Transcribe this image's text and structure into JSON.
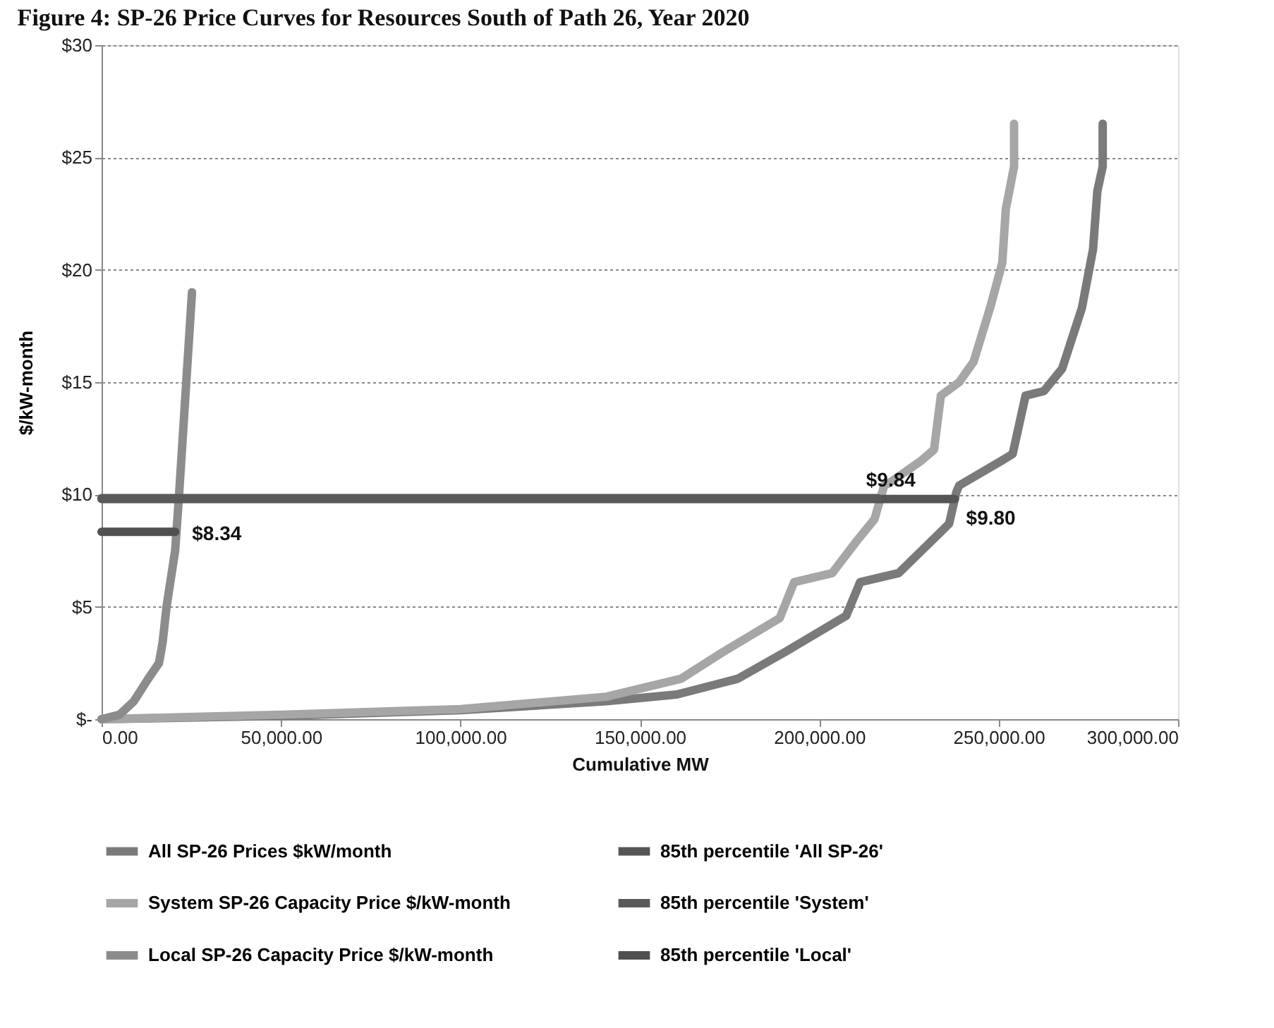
{
  "chart_data": {
    "type": "line",
    "title": "Figure 4: SP-26 Price Curves for Resources South of Path 26, Year 2020",
    "xlabel": "Cumulative MW",
    "ylabel": "$/kW-month",
    "xlim": [
      0,
      300000
    ],
    "ylim": [
      0,
      30
    ],
    "xticks": [
      {
        "value": 0,
        "label": "0.00"
      },
      {
        "value": 50000,
        "label": "50,000.00"
      },
      {
        "value": 100000,
        "label": "100,000.00"
      },
      {
        "value": 150000,
        "label": "150,000.00"
      },
      {
        "value": 200000,
        "label": "200,000.00"
      },
      {
        "value": 250000,
        "label": "250,000.00"
      },
      {
        "value": 300000,
        "label": "300,000.00"
      }
    ],
    "yticks": [
      {
        "value": 0,
        "label": "$-"
      },
      {
        "value": 5,
        "label": "$5"
      },
      {
        "value": 10,
        "label": "$10"
      },
      {
        "value": 15,
        "label": "$15"
      },
      {
        "value": 20,
        "label": "$20"
      },
      {
        "value": 25,
        "label": "$25"
      },
      {
        "value": 30,
        "label": "$30"
      }
    ],
    "grid": "y",
    "legend": "bottom",
    "line_style": "solid",
    "series": [
      {
        "name": "All SP-26 Prices $kW/month",
        "color": "#7a7a7a",
        "x": [
          0,
          50000,
          100000,
          140700,
          160300,
          177300,
          190600,
          207500,
          211400,
          222100,
          231100,
          236200,
          238200,
          239000,
          250800,
          253900,
          257500,
          262600,
          267700,
          273200,
          276300,
          277500,
          279000,
          279000
        ],
        "values": [
          0,
          0.15,
          0.4,
          0.8,
          1.1,
          1.8,
          3.0,
          4.6,
          6.1,
          6.5,
          7.9,
          8.7,
          10.1,
          10.4,
          11.5,
          11.8,
          14.4,
          14.6,
          15.6,
          18.3,
          20.9,
          23.5,
          24.6,
          26.5
        ]
      },
      {
        "name": "System SP-26 Capacity Price  $/kW-month",
        "color": "#a6a6a6",
        "x": [
          0,
          50000,
          100000,
          140700,
          161500,
          173300,
          189000,
          193000,
          203600,
          210300,
          215400,
          218100,
          219400,
          228400,
          232000,
          233900,
          239000,
          243000,
          247600,
          251000,
          252000,
          254300,
          254300
        ],
        "values": [
          0,
          0.2,
          0.45,
          1.0,
          1.8,
          3.0,
          4.5,
          6.1,
          6.5,
          7.9,
          8.9,
          10.4,
          10.5,
          11.5,
          12.0,
          14.4,
          15.0,
          15.9,
          18.3,
          20.3,
          22.7,
          24.6,
          26.5
        ]
      },
      {
        "name": "Local SP-26 Capacity Price  $/kW-month",
        "color": "#8c8c8c",
        "x": [
          0,
          5000,
          9000,
          13000,
          16000,
          17000,
          18100,
          20500,
          21600,
          23600,
          25200
        ],
        "values": [
          0,
          0.2,
          0.8,
          1.8,
          2.5,
          3.4,
          5.0,
          7.5,
          10.0,
          15.0,
          19.0
        ]
      },
      {
        "name": "85th percentile 'All SP-26'",
        "color": "#555555",
        "x": [
          0,
          237800
        ],
        "values": [
          9.8,
          9.8
        ],
        "value_labels": [
          null,
          "$9.80"
        ]
      },
      {
        "name": "85th percentile 'System'",
        "color": "#5a5a5a",
        "x": [
          0,
          216200
        ],
        "values": [
          9.84,
          9.84
        ],
        "value_labels": [
          null,
          "$9.84"
        ]
      },
      {
        "name": "85th percentile 'Local'",
        "color": "#505050",
        "x": [
          0,
          20500
        ],
        "values": [
          8.34,
          8.34
        ],
        "value_labels": [
          null,
          "$8.34"
        ]
      }
    ]
  }
}
